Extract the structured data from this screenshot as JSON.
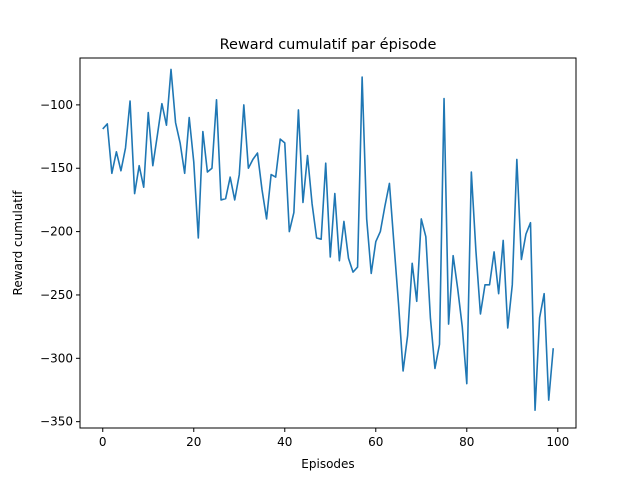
{
  "chart_data": {
    "type": "line",
    "title": "Reward cumulatif par épisode",
    "xlabel": "Episodes",
    "ylabel": "Reward cumulatif",
    "xlim": [
      -5,
      104
    ],
    "ylim": [
      -355,
      -63
    ],
    "xticks": [
      0,
      20,
      40,
      60,
      80,
      100
    ],
    "yticks": [
      -350,
      -300,
      -250,
      -200,
      -150,
      -100
    ],
    "grid": false,
    "line_color": "#1f77b4",
    "series": [
      {
        "x": [
          0,
          1,
          2,
          3,
          4,
          5,
          6,
          7,
          8,
          9,
          10,
          11,
          12,
          13,
          14,
          15,
          16,
          17,
          18,
          19,
          20,
          21,
          22,
          23,
          24,
          25,
          26,
          27,
          28,
          29,
          30,
          31,
          32,
          33,
          34,
          35,
          36,
          37,
          38,
          39,
          40,
          41,
          42,
          43,
          44,
          45,
          46,
          47,
          48,
          49,
          50,
          51,
          52,
          53,
          54,
          55,
          56,
          57,
          58,
          59,
          60,
          61,
          62,
          63,
          64,
          65,
          66,
          67,
          68,
          69,
          70,
          71,
          72,
          73,
          74,
          75,
          76,
          77,
          78,
          79,
          80,
          81,
          82,
          83,
          84,
          85,
          86,
          87,
          88,
          89,
          90,
          91,
          92,
          93,
          94,
          95,
          96,
          97,
          98,
          99
        ],
        "values": [
          -119,
          -115,
          -154,
          -137,
          -152,
          -134,
          -97,
          -170,
          -148,
          -165,
          -106,
          -148,
          -124,
          -99,
          -116,
          -72,
          -114,
          -130,
          -154,
          -110,
          -145,
          -205,
          -121,
          -153,
          -150,
          -96,
          -175,
          -174,
          -157,
          -175,
          -155,
          -100,
          -150,
          -143,
          -138,
          -167,
          -190,
          -155,
          -157,
          -127,
          -130,
          -200,
          -185,
          -104,
          -177,
          -140,
          -178,
          -205,
          -206,
          -146,
          -220,
          -170,
          -223,
          -192,
          -221,
          -232,
          -228,
          -78,
          -190,
          -233,
          -208,
          -200,
          -180,
          -162,
          -210,
          -257,
          -310,
          -282,
          -225,
          -255,
          -190,
          -204,
          -268,
          -308,
          -289,
          -95,
          -273,
          -219,
          -245,
          -275,
          -320,
          -153,
          -215,
          -265,
          -242,
          -242,
          -216,
          -249,
          -207,
          -276,
          -242,
          -143,
          -222,
          -202,
          -193,
          -341,
          -268,
          -249,
          -333,
          -292
        ]
      }
    ]
  }
}
